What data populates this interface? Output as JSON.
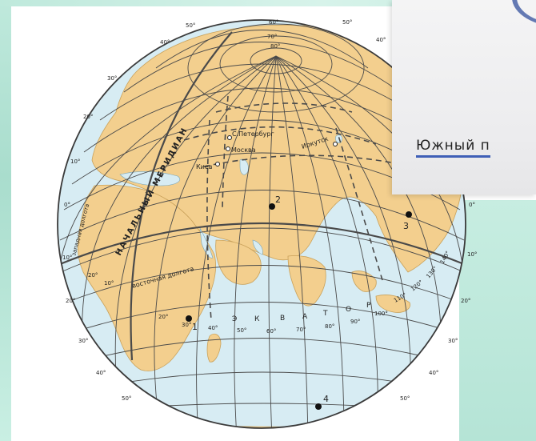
{
  "card": {
    "link_text": "Южный п"
  },
  "map": {
    "cities": [
      {
        "name": "С.Петербург"
      },
      {
        "name": "Москва"
      },
      {
        "name": "Киев"
      },
      {
        "name": "Иркутск"
      }
    ],
    "points": [
      "1",
      "2",
      "3",
      "4"
    ],
    "prime_meridian_label": "НАЧАЛЬНЫЙ МЕРИДИАН",
    "equator_letters": [
      "Э",
      "К",
      "В",
      "А",
      "Т",
      "О",
      "Р"
    ],
    "west_longitude_label": "западная долгота",
    "east_longitude_label": "восточная долгота",
    "equator_longitudes": [
      "20°",
      "30°",
      "40°",
      "50°",
      "60°",
      "70°",
      "80°",
      "90°",
      "100°",
      "110°",
      "120°",
      "130°",
      "140°"
    ],
    "west_longitudes": [
      "10°",
      "20°"
    ],
    "top_labels": [
      "50°",
      "60°",
      "50°",
      "40°",
      "40°"
    ],
    "left_latitudes": [
      "30°",
      "20°",
      "10°",
      "0°",
      "10°",
      "20°",
      "30°",
      "40°",
      "50°"
    ],
    "right_latitudes": [
      "0°",
      "10°",
      "20°",
      "30°",
      "40°",
      "50°"
    ],
    "inner_lat_labels": [
      "70°",
      "80°"
    ]
  },
  "colors": {
    "land": "#f3cf8e",
    "ocean": "#d7ecf3",
    "grid": "#4a4a4a",
    "accent_link": "#3f5fb7",
    "background_teal": "#bfe9dc"
  }
}
